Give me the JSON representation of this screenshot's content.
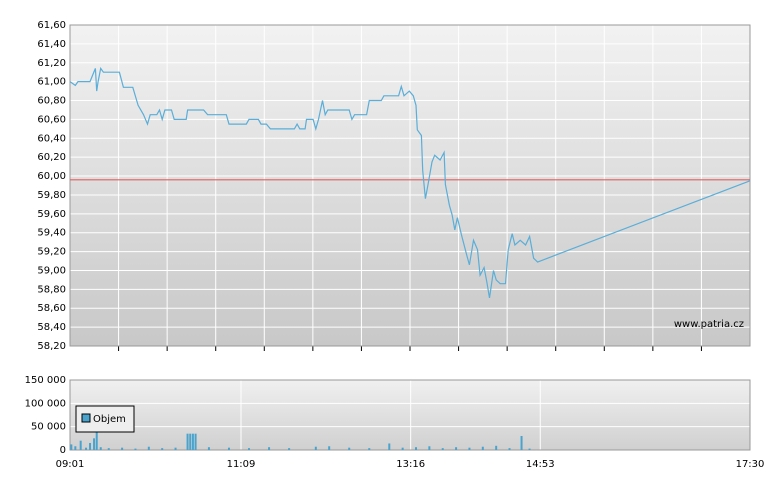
{
  "chart_data": [
    {
      "type": "line",
      "color": "#5aaed8",
      "watermark": "www.patria.cz",
      "reference_line": 59.96,
      "reference_color": "#e06060",
      "xlim": [
        "09:01",
        "17:30"
      ],
      "x": [
        "09:01",
        "09:05",
        "09:07",
        "09:16",
        "09:20",
        "09:21",
        "09:22",
        "09:24",
        "09:26",
        "09:38",
        "09:41",
        "09:48",
        "09:52",
        "09:56",
        "09:59",
        "10:01",
        "10:06",
        "10:08",
        "10:10",
        "10:12",
        "10:17",
        "10:19",
        "10:28",
        "10:29",
        "10:41",
        "10:44",
        "10:58",
        "11:00",
        "11:13",
        "11:15",
        "11:22",
        "11:24",
        "11:28",
        "11:31",
        "11:49",
        "11:51",
        "11:53",
        "11:57",
        "11:58",
        "12:03",
        "12:05",
        "12:07",
        "12:10",
        "12:12",
        "12:14",
        "12:30",
        "12:32",
        "12:34",
        "12:43",
        "12:45",
        "12:54",
        "12:56",
        "13:07",
        "13:09",
        "13:11",
        "13:15",
        "13:18",
        "13:20",
        "13:21",
        "13:24",
        "13:25",
        "13:27",
        "13:29",
        "13:32",
        "13:34",
        "13:38",
        "13:41",
        "13:42",
        "13:45",
        "13:47",
        "13:49",
        "13:51",
        "13:54",
        "13:56",
        "13:58",
        "14:00",
        "14:03",
        "14:06",
        "14:08",
        "14:11",
        "14:13",
        "14:15",
        "14:18",
        "14:20",
        "14:23",
        "14:27",
        "14:29",
        "14:32",
        "14:34",
        "14:38",
        "14:42",
        "14:45",
        "14:48",
        "14:51",
        "17:30"
      ],
      "values": [
        61.0,
        60.96,
        61.0,
        61.0,
        61.14,
        60.9,
        61.0,
        61.14,
        61.1,
        61.1,
        60.94,
        60.94,
        60.75,
        60.65,
        60.55,
        60.65,
        60.65,
        60.7,
        60.6,
        60.7,
        60.7,
        60.6,
        60.6,
        60.7,
        60.7,
        60.65,
        60.65,
        60.55,
        60.55,
        60.6,
        60.6,
        60.55,
        60.55,
        60.5,
        60.5,
        60.55,
        60.5,
        60.5,
        60.6,
        60.6,
        60.5,
        60.6,
        60.8,
        60.65,
        60.7,
        60.7,
        60.6,
        60.65,
        60.65,
        60.8,
        60.8,
        60.85,
        60.85,
        60.95,
        60.85,
        60.9,
        60.85,
        60.75,
        60.49,
        60.43,
        60.06,
        59.76,
        59.91,
        60.15,
        60.22,
        60.17,
        60.25,
        59.91,
        59.69,
        59.59,
        59.43,
        59.56,
        59.38,
        59.27,
        59.16,
        59.06,
        59.32,
        59.22,
        58.95,
        59.03,
        58.88,
        58.71,
        59.0,
        58.9,
        58.86,
        58.86,
        59.22,
        59.39,
        59.27,
        59.32,
        59.27,
        59.36,
        59.13,
        59.09,
        59.95
      ],
      "ylim": [
        58.2,
        61.6
      ],
      "yticks": [
        {
          "value": 58.2,
          "label": "58,20"
        },
        {
          "value": 58.4,
          "label": "58,40"
        },
        {
          "value": 58.6,
          "label": "58,60"
        },
        {
          "value": 58.8,
          "label": "58,80"
        },
        {
          "value": 59.0,
          "label": "59,00"
        },
        {
          "value": 59.2,
          "label": "59,20"
        },
        {
          "value": 59.4,
          "label": "59,40"
        },
        {
          "value": 59.6,
          "label": "59,60"
        },
        {
          "value": 59.8,
          "label": "59,80"
        },
        {
          "value": 60.0,
          "label": "60,00"
        },
        {
          "value": 60.2,
          "label": "60,20"
        },
        {
          "value": 60.4,
          "label": "60,40"
        },
        {
          "value": 60.6,
          "label": "60,60"
        },
        {
          "value": 60.8,
          "label": "60,80"
        },
        {
          "value": 61.0,
          "label": "61,00"
        },
        {
          "value": 61.2,
          "label": "61,20"
        },
        {
          "value": 61.4,
          "label": "61,40"
        },
        {
          "value": 61.6,
          "label": "61,60"
        }
      ]
    },
    {
      "type": "bar",
      "xlim": [
        "09:01",
        "17:30"
      ],
      "xticks": [
        "09:01",
        "11:09",
        "13:16",
        "14:53",
        "17:30"
      ],
      "ylim": [
        0,
        150000
      ],
      "yticks": [
        0,
        {
          "value": 50000,
          "label": "50 000"
        },
        {
          "value": 100000,
          "label": "100 000"
        },
        {
          "value": 150000,
          "label": "150 000"
        }
      ],
      "series": [
        {
          "name": "Objem",
          "color": "#4aa3cc",
          "x": [
            "09:02",
            "09:05",
            "09:09",
            "09:13",
            "09:16",
            "09:19",
            "09:21",
            "09:24",
            "09:30",
            "09:40",
            "09:50",
            "10:00",
            "10:10",
            "10:20",
            "10:29",
            "10:31",
            "10:33",
            "10:35",
            "10:45",
            "11:00",
            "11:15",
            "11:30",
            "11:45",
            "12:05",
            "12:15",
            "12:30",
            "12:45",
            "13:00",
            "13:10",
            "13:20",
            "13:30",
            "13:40",
            "13:50",
            "14:00",
            "14:10",
            "14:20",
            "14:30",
            "14:39",
            "14:45"
          ],
          "values": [
            12000,
            8000,
            20000,
            5000,
            15000,
            25000,
            64000,
            6000,
            4000,
            5000,
            3000,
            7000,
            4000,
            5000,
            35000,
            35000,
            35000,
            35000,
            6000,
            5000,
            4000,
            6000,
            4000,
            7000,
            8000,
            5000,
            4000,
            14000,
            5000,
            6000,
            8000,
            4000,
            6000,
            5000,
            7000,
            9000,
            4000,
            30000,
            3000
          ]
        }
      ]
    }
  ]
}
